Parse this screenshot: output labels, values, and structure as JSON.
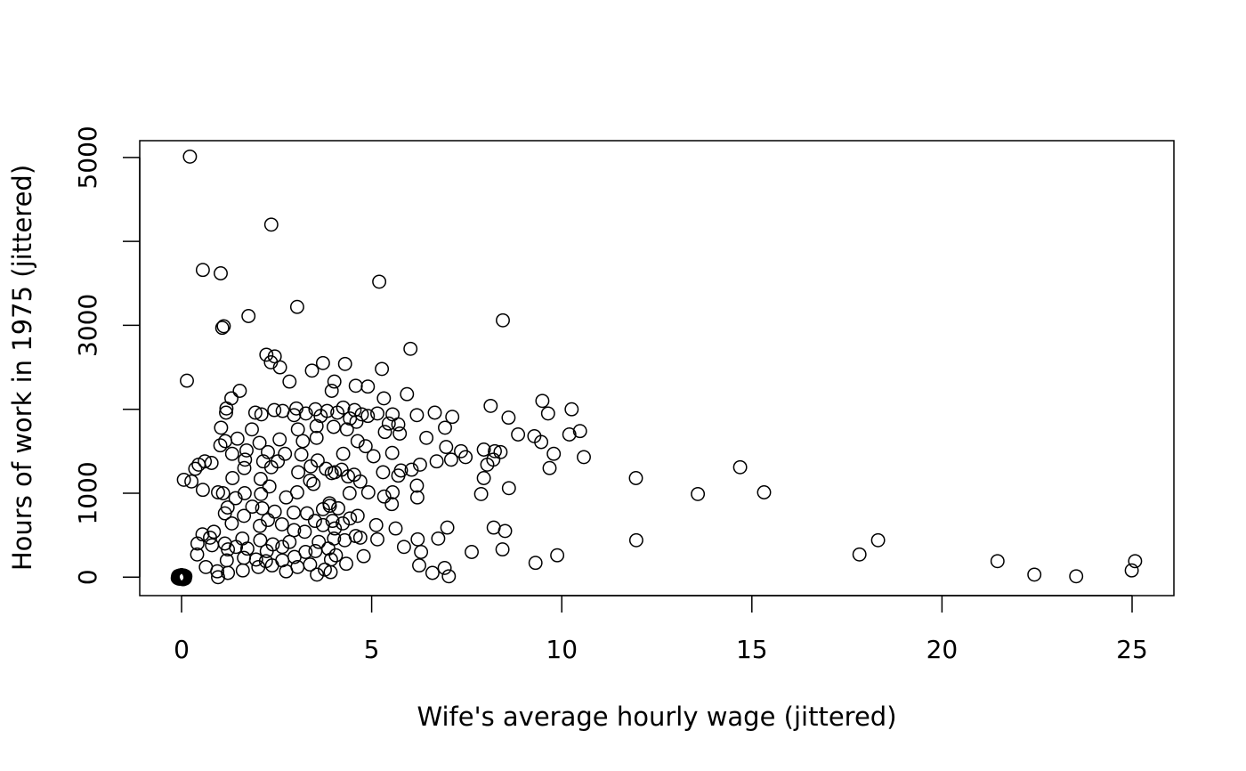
{
  "chart_data": {
    "type": "scatter",
    "title": "",
    "xlabel": "Wife's average hourly wage (jittered)",
    "ylabel": "Hours of work in 1975 (jittered)",
    "xlim": [
      -1.1,
      26.1
    ],
    "ylim": [
      -220,
      5200
    ],
    "xticks": [
      0,
      5,
      10,
      15,
      20,
      25
    ],
    "yticks": [
      0,
      1000,
      2000,
      3000,
      4000,
      5000
    ],
    "yticklabels": [
      "0",
      "1000",
      "",
      "3000",
      "",
      "5000"
    ],
    "marker": "open-circle",
    "grid": false,
    "series": [
      {
        "values": [
          [
            0.22,
            5010
          ],
          [
            2.36,
            4200
          ],
          [
            0.56,
            3660
          ],
          [
            1.03,
            3620
          ],
          [
            5.2,
            3520
          ],
          [
            3.04,
            3220
          ],
          [
            1.11,
            2990
          ],
          [
            1.07,
            2970
          ],
          [
            1.76,
            3110
          ],
          [
            8.45,
            3060
          ],
          [
            6.02,
            2720
          ],
          [
            2.23,
            2650
          ],
          [
            2.45,
            2630
          ],
          [
            2.35,
            2560
          ],
          [
            2.59,
            2500
          ],
          [
            3.72,
            2550
          ],
          [
            4.3,
            2540
          ],
          [
            5.27,
            2480
          ],
          [
            3.43,
            2460
          ],
          [
            0.14,
            2340
          ],
          [
            2.84,
            2330
          ],
          [
            4.02,
            2330
          ],
          [
            4.58,
            2280
          ],
          [
            4.9,
            2270
          ],
          [
            3.95,
            2220
          ],
          [
            1.53,
            2220
          ],
          [
            1.31,
            2130
          ],
          [
            5.32,
            2130
          ],
          [
            5.93,
            2180
          ],
          [
            9.49,
            2100
          ],
          [
            10.26,
            2000
          ],
          [
            8.13,
            2040
          ],
          [
            9.64,
            1950
          ],
          [
            8.6,
            1900
          ],
          [
            1.18,
            2010
          ],
          [
            1.17,
            1960
          ],
          [
            1.94,
            1960
          ],
          [
            2.44,
            1990
          ],
          [
            2.66,
            1980
          ],
          [
            3.02,
            2010
          ],
          [
            3.52,
            2000
          ],
          [
            3.83,
            1980
          ],
          [
            4.1,
            1960
          ],
          [
            4.25,
            2020
          ],
          [
            4.55,
            1990
          ],
          [
            4.74,
            1940
          ],
          [
            5.15,
            1950
          ],
          [
            5.55,
            1940
          ],
          [
            6.66,
            1960
          ],
          [
            6.19,
            1930
          ],
          [
            7.12,
            1910
          ],
          [
            2.1,
            1940
          ],
          [
            2.96,
            1930
          ],
          [
            3.27,
            1950
          ],
          [
            3.66,
            1920
          ],
          [
            4.43,
            1890
          ],
          [
            4.9,
            1920
          ],
          [
            5.45,
            1830
          ],
          [
            6.93,
            1780
          ],
          [
            5.7,
            1820
          ],
          [
            1.04,
            1780
          ],
          [
            1.85,
            1760
          ],
          [
            3.06,
            1760
          ],
          [
            3.55,
            1800
          ],
          [
            4.0,
            1790
          ],
          [
            4.35,
            1760
          ],
          [
            4.6,
            1850
          ],
          [
            10.48,
            1740
          ],
          [
            10.2,
            1700
          ],
          [
            9.28,
            1680
          ],
          [
            9.46,
            1610
          ],
          [
            8.85,
            1700
          ],
          [
            6.44,
            1660
          ],
          [
            5.35,
            1730
          ],
          [
            5.74,
            1710
          ],
          [
            1.15,
            1620
          ],
          [
            1.47,
            1650
          ],
          [
            2.05,
            1600
          ],
          [
            2.58,
            1640
          ],
          [
            3.19,
            1620
          ],
          [
            3.55,
            1660
          ],
          [
            4.63,
            1620
          ],
          [
            4.84,
            1560
          ],
          [
            6.96,
            1550
          ],
          [
            7.35,
            1500
          ],
          [
            7.47,
            1430
          ],
          [
            7.95,
            1520
          ],
          [
            8.24,
            1500
          ],
          [
            8.39,
            1490
          ],
          [
            9.79,
            1470
          ],
          [
            10.58,
            1430
          ],
          [
            1.02,
            1570
          ],
          [
            1.33,
            1470
          ],
          [
            1.71,
            1510
          ],
          [
            2.27,
            1490
          ],
          [
            2.72,
            1470
          ],
          [
            3.15,
            1460
          ],
          [
            4.25,
            1470
          ],
          [
            5.05,
            1440
          ],
          [
            5.54,
            1480
          ],
          [
            7.09,
            1400
          ],
          [
            6.71,
            1380
          ],
          [
            8.2,
            1400
          ],
          [
            8.04,
            1340
          ],
          [
            9.68,
            1300
          ],
          [
            0.61,
            1380
          ],
          [
            0.45,
            1340
          ],
          [
            1.67,
            1400
          ],
          [
            2.15,
            1380
          ],
          [
            2.53,
            1380
          ],
          [
            3.58,
            1390
          ],
          [
            3.8,
            1290
          ],
          [
            4.03,
            1250
          ],
          [
            4.21,
            1280
          ],
          [
            4.54,
            1220
          ],
          [
            5.3,
            1250
          ],
          [
            6.05,
            1280
          ],
          [
            6.27,
            1340
          ],
          [
            5.77,
            1270
          ],
          [
            0.36,
            1290
          ],
          [
            0.79,
            1360
          ],
          [
            1.65,
            1300
          ],
          [
            2.36,
            1310
          ],
          [
            3.07,
            1250
          ],
          [
            3.4,
            1320
          ],
          [
            3.95,
            1240
          ],
          [
            4.38,
            1200
          ],
          [
            4.7,
            1140
          ],
          [
            1.34,
            1180
          ],
          [
            2.08,
            1170
          ],
          [
            3.38,
            1150
          ],
          [
            5.7,
            1210
          ],
          [
            6.19,
            1090
          ],
          [
            7.95,
            1180
          ],
          [
            8.61,
            1060
          ],
          [
            11.95,
            1180
          ],
          [
            14.69,
            1310
          ],
          [
            13.58,
            990
          ],
          [
            15.32,
            1010
          ],
          [
            0.06,
            1160
          ],
          [
            0.26,
            1140
          ],
          [
            0.56,
            1040
          ],
          [
            0.96,
            1010
          ],
          [
            1.09,
            1000
          ],
          [
            1.42,
            940
          ],
          [
            1.66,
            1000
          ],
          [
            2.09,
            990
          ],
          [
            2.31,
            1080
          ],
          [
            2.75,
            950
          ],
          [
            3.04,
            1010
          ],
          [
            3.47,
            1110
          ],
          [
            3.89,
            880
          ],
          [
            4.42,
            1000
          ],
          [
            4.91,
            1010
          ],
          [
            5.33,
            960
          ],
          [
            5.55,
            1010
          ],
          [
            6.2,
            950
          ],
          [
            7.88,
            990
          ],
          [
            1.21,
            830
          ],
          [
            1.86,
            840
          ],
          [
            2.12,
            820
          ],
          [
            2.45,
            780
          ],
          [
            2.95,
            770
          ],
          [
            3.72,
            810
          ],
          [
            3.3,
            760
          ],
          [
            3.9,
            850
          ],
          [
            4.12,
            820
          ],
          [
            4.43,
            700
          ],
          [
            4.63,
            730
          ],
          [
            5.53,
            870
          ],
          [
            1.14,
            760
          ],
          [
            1.64,
            730
          ],
          [
            2.27,
            680
          ],
          [
            2.64,
            630
          ],
          [
            3.51,
            670
          ],
          [
            3.97,
            670
          ],
          [
            4.24,
            640
          ],
          [
            1.32,
            640
          ],
          [
            2.06,
            610
          ],
          [
            2.96,
            560
          ],
          [
            3.72,
            620
          ],
          [
            4.03,
            580
          ],
          [
            4.58,
            490
          ],
          [
            5.63,
            580
          ],
          [
            5.12,
            620
          ],
          [
            0.55,
            510
          ],
          [
            0.75,
            470
          ],
          [
            0.85,
            540
          ],
          [
            1.14,
            400
          ],
          [
            1.6,
            460
          ],
          [
            2.07,
            440
          ],
          [
            2.4,
            390
          ],
          [
            2.84,
            420
          ],
          [
            3.24,
            540
          ],
          [
            3.61,
            420
          ],
          [
            4.01,
            460
          ],
          [
            4.29,
            440
          ],
          [
            4.7,
            470
          ],
          [
            5.15,
            450
          ],
          [
            6.99,
            590
          ],
          [
            8.21,
            590
          ],
          [
            8.51,
            550
          ],
          [
            6.75,
            460
          ],
          [
            5.85,
            360
          ],
          [
            6.3,
            300
          ],
          [
            7.63,
            300
          ],
          [
            8.44,
            330
          ],
          [
            11.96,
            440
          ],
          [
            0.42,
            400
          ],
          [
            0.41,
            270
          ],
          [
            0.8,
            380
          ],
          [
            1.22,
            330
          ],
          [
            1.43,
            360
          ],
          [
            1.73,
            340
          ],
          [
            2.24,
            310
          ],
          [
            2.65,
            360
          ],
          [
            3.26,
            300
          ],
          [
            3.86,
            340
          ],
          [
            4.06,
            260
          ],
          [
            1.19,
            200
          ],
          [
            1.64,
            230
          ],
          [
            1.96,
            210
          ],
          [
            2.22,
            190
          ],
          [
            2.65,
            200
          ],
          [
            2.97,
            240
          ],
          [
            3.52,
            310
          ],
          [
            3.93,
            210
          ],
          [
            0.64,
            120
          ],
          [
            0.94,
            70
          ],
          [
            1.22,
            50
          ],
          [
            1.61,
            80
          ],
          [
            2.02,
            120
          ],
          [
            2.38,
            140
          ],
          [
            2.75,
            70
          ],
          [
            3.05,
            120
          ],
          [
            3.38,
            150
          ],
          [
            3.92,
            60
          ],
          [
            4.33,
            160
          ],
          [
            4.79,
            250
          ],
          [
            6.25,
            140
          ],
          [
            6.6,
            50
          ],
          [
            6.92,
            110
          ],
          [
            7.03,
            10
          ],
          [
            0.96,
            0
          ],
          [
            3.56,
            30
          ],
          [
            3.77,
            90
          ],
          [
            6.21,
            450
          ],
          [
            9.88,
            260
          ],
          [
            9.31,
            170
          ],
          [
            17.83,
            270
          ],
          [
            18.32,
            440
          ],
          [
            21.46,
            190
          ],
          [
            22.43,
            30
          ],
          [
            23.53,
            10
          ],
          [
            24.99,
            80
          ],
          [
            25.08,
            190
          ],
          [
            0.0,
            0
          ],
          [
            0.03,
            10
          ],
          [
            -0.03,
            -10
          ],
          [
            0.06,
            0
          ],
          [
            -0.05,
            20
          ],
          [
            0.02,
            -20
          ],
          [
            0.08,
            -5
          ],
          [
            -0.08,
            5
          ],
          [
            0.0,
            25
          ],
          [
            0.04,
            -25
          ],
          [
            -0.02,
            15
          ],
          [
            0.1,
            10
          ],
          [
            -0.1,
            -10
          ],
          [
            0.01,
            -5
          ],
          [
            0.06,
            20
          ],
          [
            -0.06,
            -18
          ],
          [
            0.09,
            -15
          ],
          [
            -0.09,
            12
          ],
          [
            0.03,
            8
          ],
          [
            -0.04,
            -6
          ]
        ]
      }
    ]
  }
}
